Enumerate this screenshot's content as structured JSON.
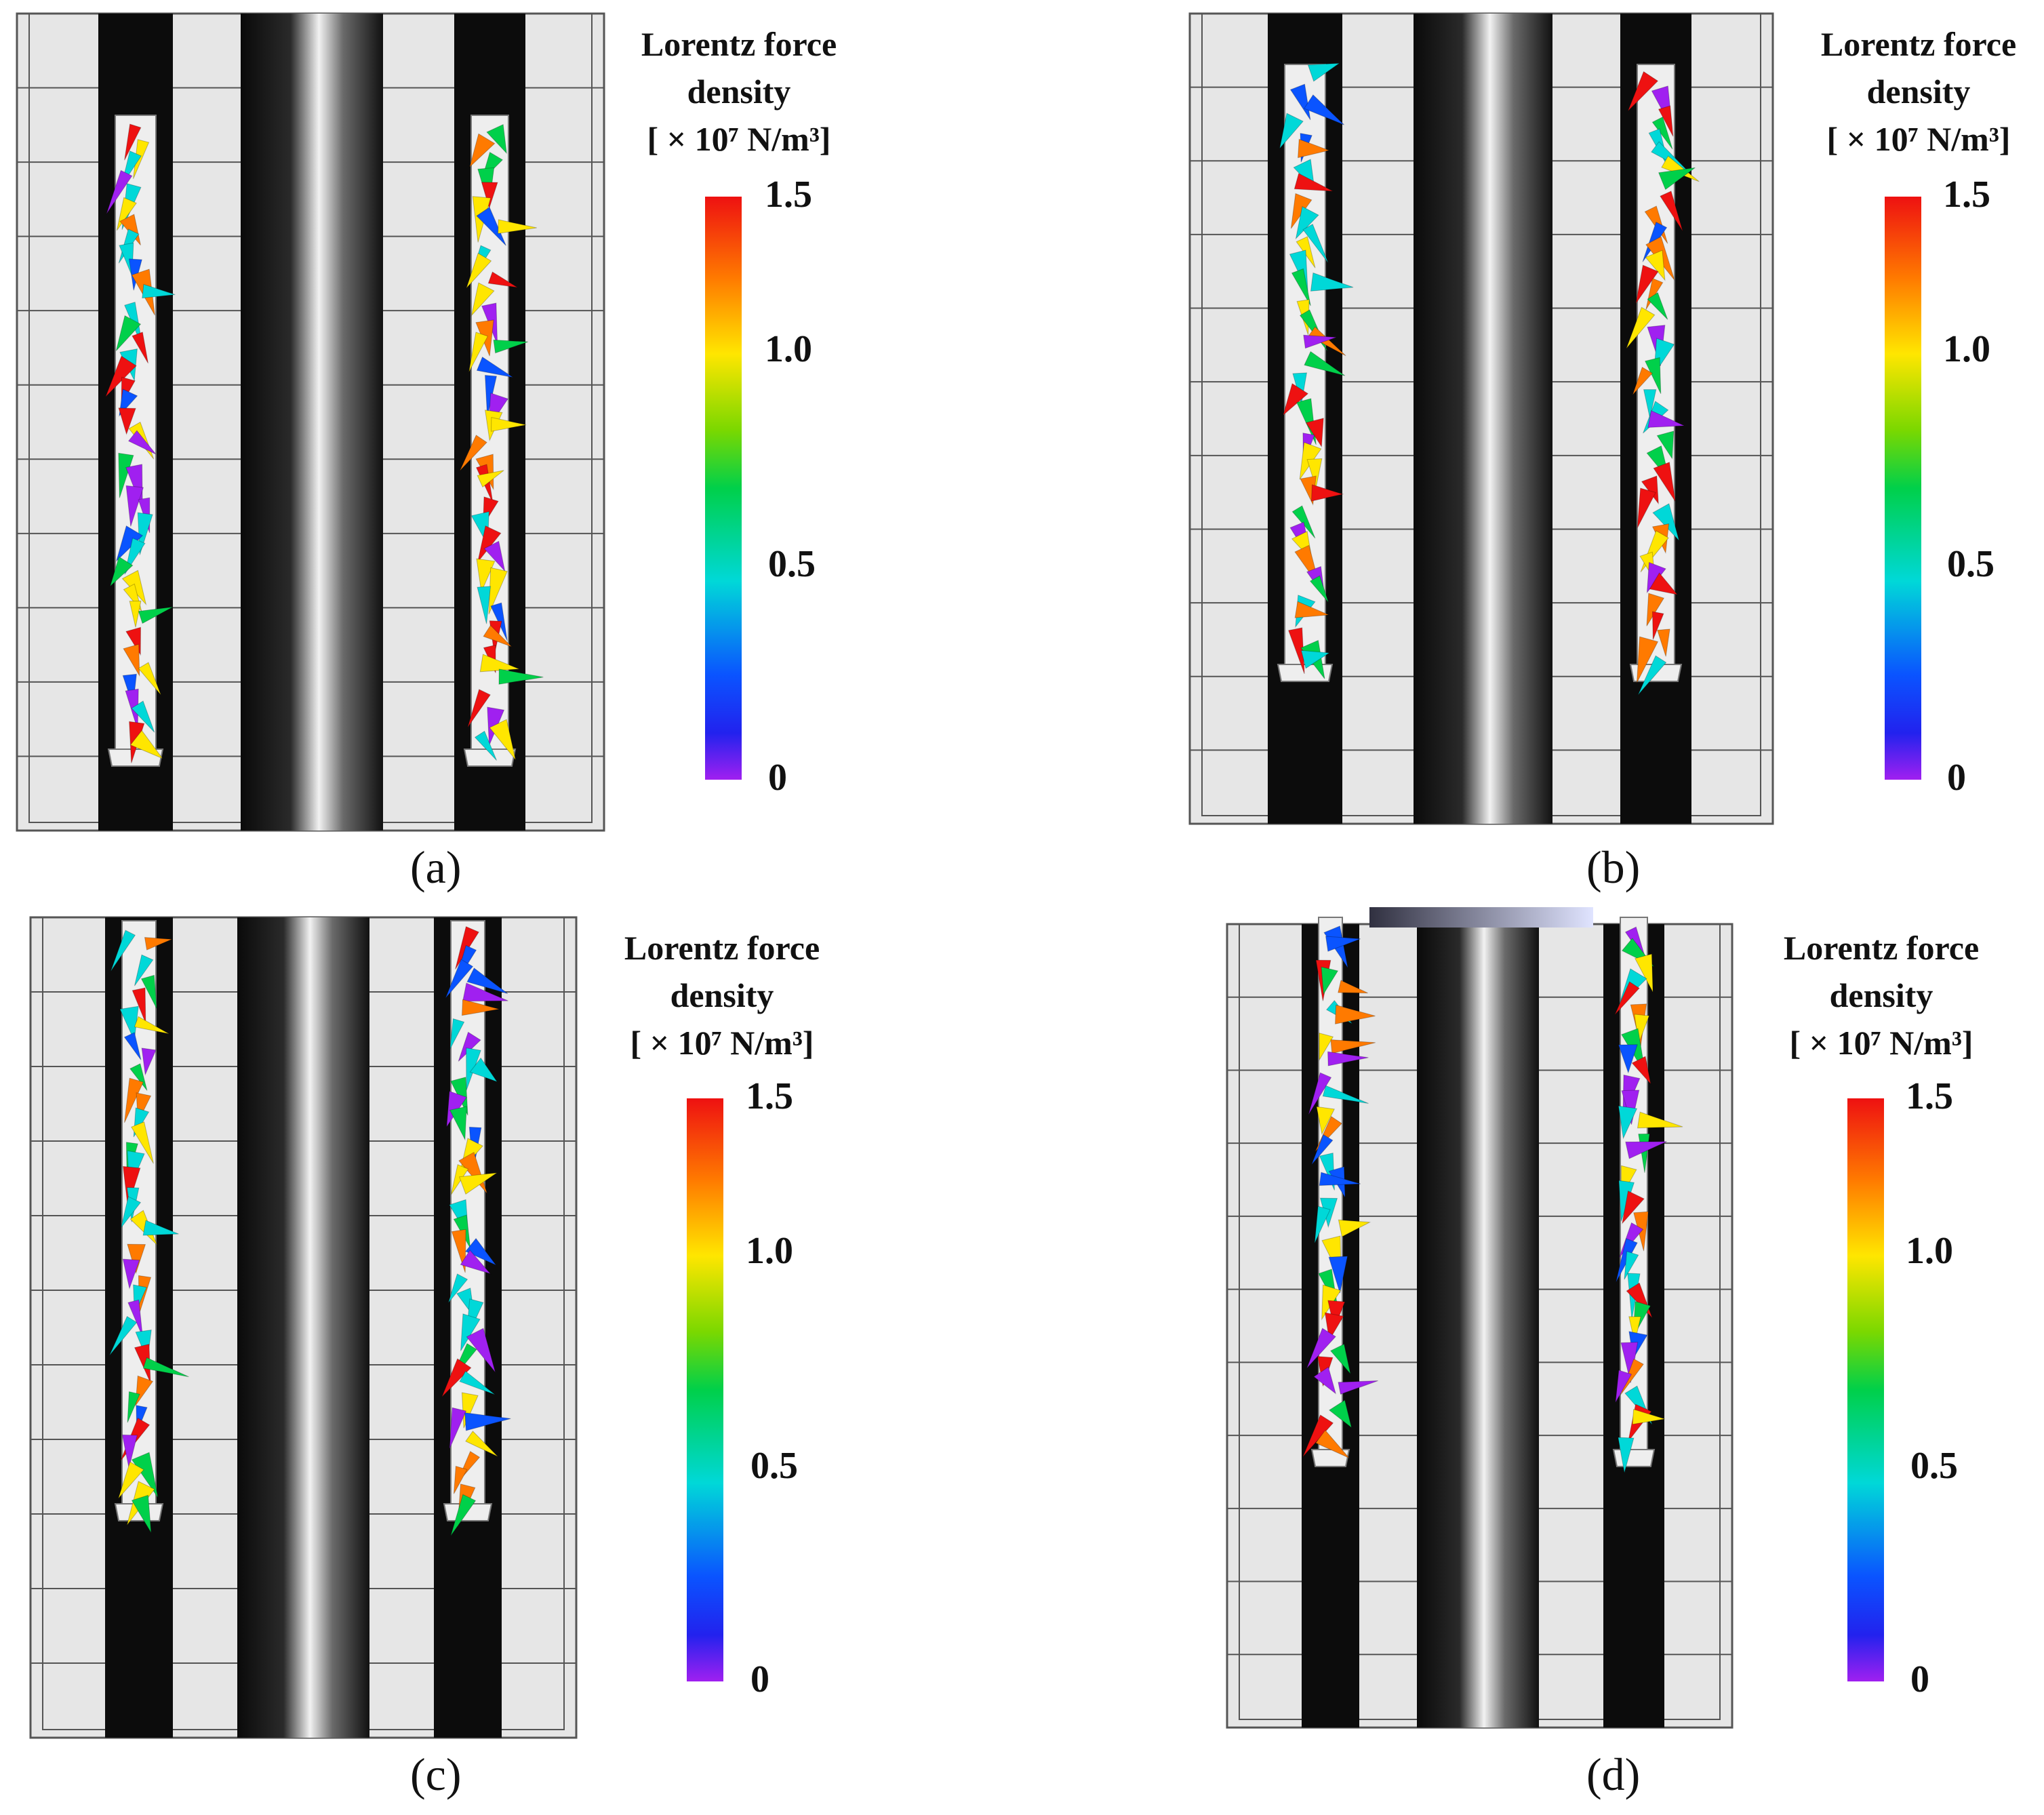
{
  "legend": {
    "title_line1": "Lorentz force",
    "title_line2": "density",
    "unit": "[ × 10⁷ N/m³]",
    "ticks": [
      "1.5",
      "1.0",
      "0.5",
      "0"
    ],
    "colors": [
      "#ee1111",
      "#ff7a00",
      "#ffe600",
      "#00d04a",
      "#00d8d8",
      "#0a54ff",
      "#a020f0"
    ]
  },
  "panels": [
    {
      "caption": "(a)"
    },
    {
      "caption": "(b)"
    },
    {
      "caption": "(c)"
    },
    {
      "caption": "(d)"
    }
  ]
}
